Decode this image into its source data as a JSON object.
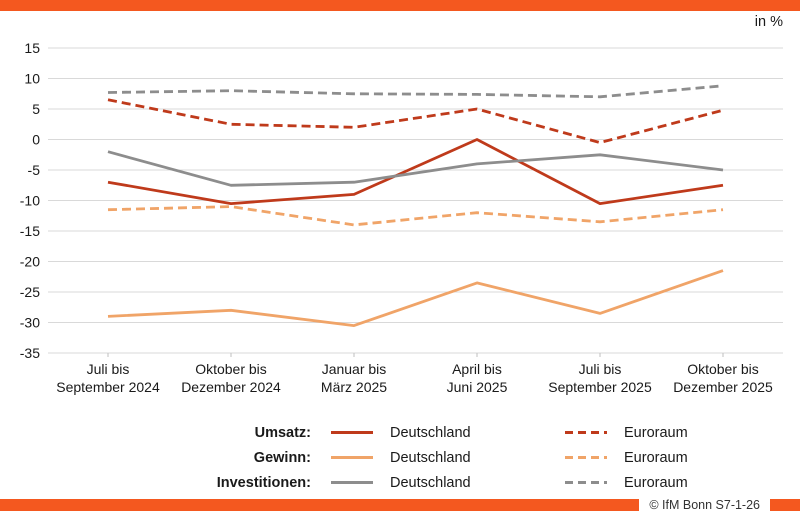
{
  "header": {
    "unit_label": "in %"
  },
  "footer": {
    "credit": "© IfM Bonn S7-1-26"
  },
  "colors": {
    "accent_bar": "#f4581f",
    "umsatz": "#bf3a1b",
    "gewinn": "#f0a468",
    "investitionen": "#8d8d8d",
    "gridline": "#d9d9d9",
    "tick": "#bfbfbf",
    "text": "#1a1a1a",
    "credit_text": "#333333"
  },
  "legend": {
    "rows": [
      {
        "label": "Umsatz:",
        "solid_label": "Deutschland",
        "dashed_label": "Euroraum",
        "color": "#bf3a1b"
      },
      {
        "label": "Gewinn:",
        "solid_label": "Deutschland",
        "dashed_label": "Euroraum",
        "color": "#f0a468"
      },
      {
        "label": "Investitionen:",
        "solid_label": "Deutschland",
        "dashed_label": "Euroraum",
        "color": "#8d8d8d"
      }
    ]
  },
  "chart_data": {
    "type": "line",
    "title": "",
    "unit_label": "in %",
    "categories": [
      [
        "Juli bis",
        "September 2024"
      ],
      [
        "Oktober bis",
        "Dezember 2024"
      ],
      [
        "Januar bis",
        "März 2025"
      ],
      [
        "April bis",
        "Juni 2025"
      ],
      [
        "Juli bis",
        "September 2025"
      ],
      [
        "Oktober bis",
        "Dezember 2025"
      ]
    ],
    "ylim": [
      -35,
      15
    ],
    "ytick_step": 5,
    "grid": "horizontal",
    "legend_position": "bottom",
    "series": [
      {
        "id": "umsatz-deutschland",
        "group": "Umsatz",
        "region": "Deutschland",
        "style": "solid",
        "color": "#bf3a1b",
        "values": [
          -7,
          -10.5,
          -9,
          0,
          -10.5,
          -7.5
        ]
      },
      {
        "id": "umsatz-euroraum",
        "group": "Umsatz",
        "region": "Euroraum",
        "style": "dashed",
        "color": "#bf3a1b",
        "values": [
          6.5,
          2.5,
          2,
          5,
          -0.5,
          4.8
        ]
      },
      {
        "id": "gewinn-deutschland",
        "group": "Gewinn",
        "region": "Deutschland",
        "style": "solid",
        "color": "#f0a468",
        "values": [
          -29,
          -28,
          -30.5,
          -23.5,
          -28.5,
          -21.5
        ]
      },
      {
        "id": "gewinn-euroraum",
        "group": "Gewinn",
        "region": "Euroraum",
        "style": "dashed",
        "color": "#f0a468",
        "values": [
          -11.5,
          -11,
          -14,
          -12,
          -13.5,
          -11.5
        ]
      },
      {
        "id": "investitionen-deutschland",
        "group": "Investitionen",
        "region": "Deutschland",
        "style": "solid",
        "color": "#8d8d8d",
        "values": [
          -2,
          -7.5,
          -7,
          -4,
          -2.5,
          -5
        ]
      },
      {
        "id": "investitionen-euroraum",
        "group": "Investitionen",
        "region": "Euroraum",
        "style": "dashed",
        "color": "#8d8d8d",
        "values": [
          7.7,
          8,
          7.5,
          7.4,
          7,
          8.8
        ]
      }
    ]
  }
}
